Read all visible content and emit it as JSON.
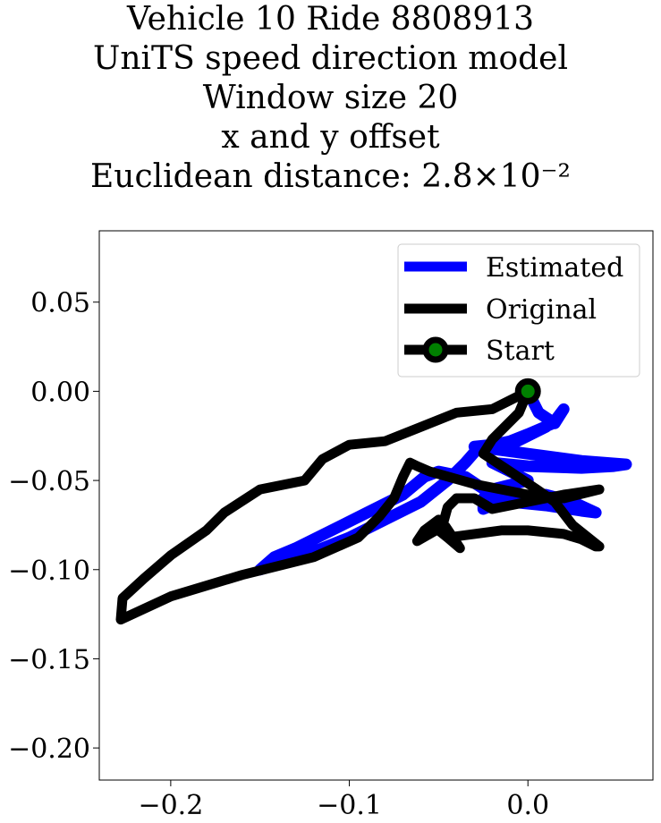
{
  "title": {
    "line1": "Vehicle 10 Ride 8808913",
    "line2": "UniTS speed direction model",
    "line3": "Window size 20",
    "line4": "x and y offset",
    "line5": "Euclidean distance: 2.8×10⁻²"
  },
  "chart_data": {
    "type": "line",
    "xlim": [
      -0.24,
      0.07
    ],
    "ylim": [
      -0.218,
      0.09
    ],
    "x_ticks": [
      {
        "value": -0.2,
        "label": "−0.2"
      },
      {
        "value": -0.1,
        "label": "−0.1"
      },
      {
        "value": 0.0,
        "label": "0.0"
      }
    ],
    "y_ticks": [
      {
        "value": 0.05,
        "label": "0.05"
      },
      {
        "value": 0.0,
        "label": "0.00"
      },
      {
        "value": -0.05,
        "label": "−0.05"
      },
      {
        "value": -0.1,
        "label": "−0.10"
      },
      {
        "value": -0.15,
        "label": "−0.15"
      },
      {
        "value": -0.2,
        "label": "−0.20"
      }
    ],
    "legend": {
      "placement": "upper right"
    },
    "series": [
      {
        "name": "Estimated",
        "color": "#0000ff",
        "points": [
          [
            0.0,
            0.0
          ],
          [
            0.006,
            -0.012
          ],
          [
            0.015,
            -0.018
          ],
          [
            0.02,
            -0.01
          ],
          [
            0.014,
            -0.018
          ],
          [
            0.0,
            -0.024
          ],
          [
            -0.01,
            -0.028
          ],
          [
            -0.02,
            -0.03
          ],
          [
            -0.03,
            -0.031
          ],
          [
            0.0,
            -0.035
          ],
          [
            0.03,
            -0.039
          ],
          [
            0.055,
            -0.041
          ],
          [
            0.048,
            -0.042
          ],
          [
            0.03,
            -0.043
          ],
          [
            0.0,
            -0.042
          ],
          [
            -0.02,
            -0.04
          ],
          [
            -0.01,
            -0.045
          ],
          [
            0.0,
            -0.05
          ],
          [
            -0.02,
            -0.055
          ],
          [
            -0.025,
            -0.06
          ],
          [
            -0.025,
            -0.066
          ],
          [
            -0.01,
            -0.06
          ],
          [
            0.01,
            -0.058
          ],
          [
            0.025,
            -0.062
          ],
          [
            0.038,
            -0.068
          ],
          [
            0.03,
            -0.067
          ],
          [
            0.01,
            -0.064
          ],
          [
            -0.01,
            -0.062
          ],
          [
            -0.02,
            -0.058
          ],
          [
            -0.035,
            -0.048
          ],
          [
            -0.05,
            -0.045
          ],
          [
            -0.058,
            -0.048
          ],
          [
            -0.07,
            -0.058
          ],
          [
            -0.09,
            -0.068
          ],
          [
            -0.11,
            -0.078
          ],
          [
            -0.13,
            -0.088
          ],
          [
            -0.142,
            -0.093
          ],
          [
            -0.15,
            -0.1
          ],
          [
            -0.14,
            -0.097
          ],
          [
            -0.12,
            -0.09
          ],
          [
            -0.1,
            -0.082
          ],
          [
            -0.08,
            -0.072
          ],
          [
            -0.06,
            -0.062
          ],
          [
            -0.045,
            -0.05
          ],
          [
            -0.035,
            -0.04
          ],
          [
            -0.028,
            -0.032
          ],
          [
            -0.01,
            -0.03
          ],
          [
            0.0,
            -0.025
          ],
          [
            0.01,
            -0.02
          ]
        ]
      },
      {
        "name": "Original",
        "color": "#000000",
        "points": [
          [
            0.0,
            0.0
          ],
          [
            -0.02,
            -0.01
          ],
          [
            -0.04,
            -0.012
          ],
          [
            -0.06,
            -0.02
          ],
          [
            -0.08,
            -0.028
          ],
          [
            -0.1,
            -0.03
          ],
          [
            -0.115,
            -0.038
          ],
          [
            -0.125,
            -0.05
          ],
          [
            -0.15,
            -0.055
          ],
          [
            -0.17,
            -0.068
          ],
          [
            -0.18,
            -0.078
          ],
          [
            -0.2,
            -0.092
          ],
          [
            -0.215,
            -0.105
          ],
          [
            -0.227,
            -0.116
          ],
          [
            -0.228,
            -0.128
          ],
          [
            -0.2,
            -0.115
          ],
          [
            -0.16,
            -0.103
          ],
          [
            -0.12,
            -0.093
          ],
          [
            -0.095,
            -0.082
          ],
          [
            -0.083,
            -0.07
          ],
          [
            -0.075,
            -0.06
          ],
          [
            -0.07,
            -0.048
          ],
          [
            -0.066,
            -0.04
          ],
          [
            -0.062,
            -0.042
          ],
          [
            -0.055,
            -0.045
          ],
          [
            -0.03,
            -0.052
          ],
          [
            0.0,
            -0.058
          ],
          [
            0.02,
            -0.06
          ],
          [
            0.04,
            -0.055
          ],
          [
            0.02,
            -0.058
          ],
          [
            0.0,
            -0.062
          ],
          [
            -0.02,
            -0.066
          ],
          [
            -0.03,
            -0.06
          ],
          [
            -0.04,
            -0.06
          ],
          [
            -0.045,
            -0.065
          ],
          [
            -0.048,
            -0.076
          ],
          [
            -0.055,
            -0.08
          ],
          [
            -0.062,
            -0.084
          ],
          [
            -0.058,
            -0.078
          ],
          [
            -0.05,
            -0.072
          ],
          [
            -0.046,
            -0.076
          ],
          [
            -0.042,
            -0.082
          ],
          [
            -0.038,
            -0.088
          ],
          [
            -0.045,
            -0.082
          ],
          [
            -0.05,
            -0.078
          ],
          [
            -0.045,
            -0.082
          ],
          [
            -0.03,
            -0.08
          ],
          [
            -0.015,
            -0.078
          ],
          [
            0.0,
            -0.078
          ],
          [
            0.02,
            -0.08
          ],
          [
            0.03,
            -0.083
          ],
          [
            0.038,
            -0.087
          ],
          [
            0.04,
            -0.087
          ],
          [
            0.025,
            -0.075
          ],
          [
            0.015,
            -0.062
          ],
          [
            0.005,
            -0.055
          ],
          [
            -0.01,
            -0.045
          ],
          [
            -0.025,
            -0.035
          ],
          [
            -0.02,
            -0.027
          ],
          [
            -0.005,
            -0.012
          ],
          [
            0.0,
            0.0
          ]
        ]
      }
    ],
    "start": {
      "name": "Start",
      "point": [
        0.0,
        0.0
      ],
      "marker_face": "#008000",
      "marker_edge": "#000000"
    }
  }
}
